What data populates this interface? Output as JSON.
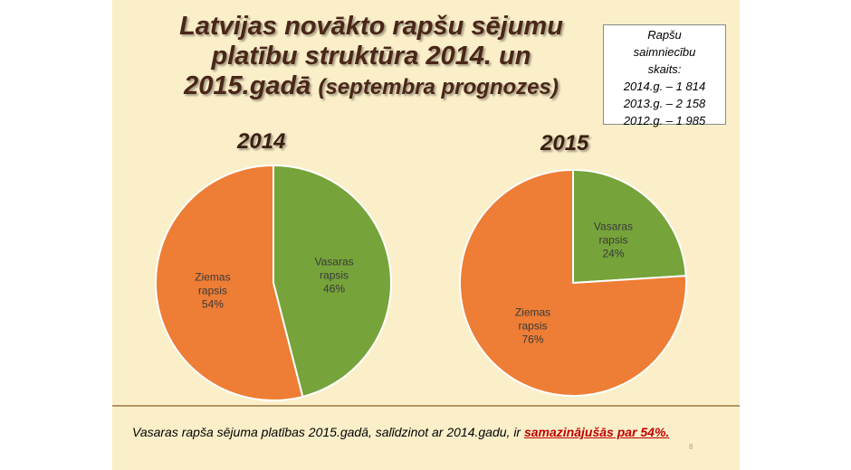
{
  "title": {
    "line1": "Latvijas novākto rapšu sējumu",
    "line2": "platību struktūra 2014. un",
    "line3_main": "2015.gadā ",
    "line3_paren": "(septembra prognozes)"
  },
  "infobox": {
    "line1": "Rapšu",
    "line2": "saimniecību",
    "line3": "skaits:",
    "line4": "2014.g. – 1 814",
    "line5": "2013.g. – 2 158",
    "line6": "2012.g. – 1 985"
  },
  "chart_data": [
    {
      "type": "pie",
      "title": "2014",
      "slices": [
        {
          "label": [
            "Vasaras",
            "rapsis",
            "46%"
          ],
          "value": 46,
          "color": "#76a33a"
        },
        {
          "label": [
            "Ziemas",
            "rapsis",
            "54%"
          ],
          "value": 54,
          "color": "#ee7d35"
        }
      ]
    },
    {
      "type": "pie",
      "title": "2015",
      "slices": [
        {
          "label": [
            "Vasaras",
            "rapsis",
            "24%"
          ],
          "value": 24,
          "color": "#76a33a"
        },
        {
          "label": [
            "Ziemas",
            "rapsis",
            "76%"
          ],
          "value": 76,
          "color": "#ee7d35"
        }
      ]
    }
  ],
  "footer": {
    "text": "Vasaras rapša sējuma platības 2015.gadā, salīdzinot ar 2014.gadu, ir ",
    "highlight": "samazinājušās par 54%."
  },
  "page_number": "8"
}
